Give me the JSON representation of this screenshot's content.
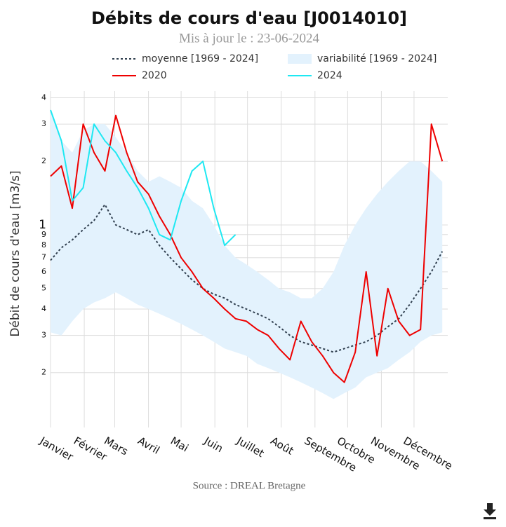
{
  "chart_data": {
    "type": "line",
    "title": "Débits de cours d'eau [J0014010]",
    "subtitle": "Mis à jour le : 23-06-2024",
    "y_label": "Débit de cours d'eau [m3/s]",
    "source": "Source : DREAL Bretagne",
    "yscale": "log",
    "grid": true,
    "x": [
      1,
      11,
      21,
      31,
      41,
      51,
      61,
      71,
      81,
      91,
      101,
      111,
      121,
      131,
      141,
      151,
      161,
      171,
      181,
      191,
      201,
      211,
      221,
      231,
      241,
      251,
      261,
      271,
      281,
      291,
      301,
      311,
      321,
      331,
      341,
      351,
      361
    ],
    "xlim": [
      1,
      366
    ],
    "xticks": [
      {
        "value": 1,
        "label": "Janvier"
      },
      {
        "value": 32,
        "label": "Février"
      },
      {
        "value": 60,
        "label": "Mars"
      },
      {
        "value": 91,
        "label": "Avril"
      },
      {
        "value": 121,
        "label": "Mai"
      },
      {
        "value": 152,
        "label": "Juin"
      },
      {
        "value": 182,
        "label": "Juillet"
      },
      {
        "value": 213,
        "label": "Août"
      },
      {
        "value": 244,
        "label": "Septembre"
      },
      {
        "value": 274,
        "label": "Octobre"
      },
      {
        "value": 305,
        "label": "Novembre"
      },
      {
        "value": 335,
        "label": "Décembre"
      }
    ],
    "ylim": [
      1.1,
      43
    ],
    "yticks": [
      2,
      3,
      4,
      5,
      6,
      7,
      8,
      9,
      {
        "value": 10,
        "label": "1"
      },
      {
        "value": 20,
        "label": "2"
      },
      {
        "value": 30,
        "label": "3"
      },
      {
        "value": 40,
        "label": "4"
      }
    ],
    "series": [
      {
        "name": "moyenne [1969 - 2024]",
        "color": "#2f3e4e",
        "dash": true,
        "values": [
          6.8,
          7.8,
          8.5,
          9.5,
          10.5,
          12.5,
          10,
          9.5,
          9,
          9.5,
          8,
          7,
          6.2,
          5.5,
          5,
          4.7,
          4.5,
          4.2,
          4,
          3.8,
          3.6,
          3.3,
          3,
          2.8,
          2.7,
          2.6,
          2.5,
          2.6,
          2.7,
          2.8,
          3,
          3.3,
          3.6,
          4.2,
          5,
          6,
          7.5
        ]
      },
      {
        "name": "variabilité [1969 - 2024]",
        "color": "#e3f2fd",
        "band": true,
        "lower": [
          3.1,
          3,
          3.5,
          4,
          4.3,
          4.5,
          4.8,
          4.5,
          4.2,
          4,
          3.8,
          3.6,
          3.4,
          3.2,
          3,
          2.8,
          2.6,
          2.5,
          2.4,
          2.2,
          2.1,
          2,
          1.9,
          1.8,
          1.7,
          1.6,
          1.5,
          1.6,
          1.7,
          1.9,
          2,
          2.1,
          2.3,
          2.5,
          2.8,
          3,
          3.1
        ],
        "upper": [
          35,
          25,
          22,
          28,
          30,
          30,
          26,
          22,
          18,
          16,
          17,
          16,
          15,
          13,
          12,
          10,
          8,
          7,
          6.5,
          6,
          5.5,
          5,
          4.8,
          4.5,
          4.5,
          5,
          6,
          8,
          10,
          12,
          14,
          16,
          18,
          20,
          20,
          18,
          16
        ]
      },
      {
        "name": "2020",
        "color": "#ee0000",
        "values": [
          17,
          19,
          12,
          30,
          22,
          18,
          33,
          22,
          16,
          14,
          11,
          9,
          7,
          6,
          5,
          4.5,
          4,
          3.6,
          3.5,
          3.2,
          3,
          2.6,
          2.3,
          3.5,
          2.8,
          2.4,
          2,
          1.8,
          2.5,
          6,
          2.4,
          5,
          3.5,
          3,
          3.2,
          30,
          20
        ]
      },
      {
        "name": "2024",
        "color": "#1ee8f2",
        "values": [
          35,
          25,
          13,
          15,
          30,
          25,
          22,
          18,
          15,
          12,
          9,
          8.5,
          13,
          18,
          20,
          12,
          8,
          9,
          null,
          null,
          null,
          null,
          null,
          null,
          null,
          null,
          null,
          null,
          null,
          null,
          null,
          null,
          null,
          null,
          null,
          null,
          null
        ]
      }
    ]
  }
}
